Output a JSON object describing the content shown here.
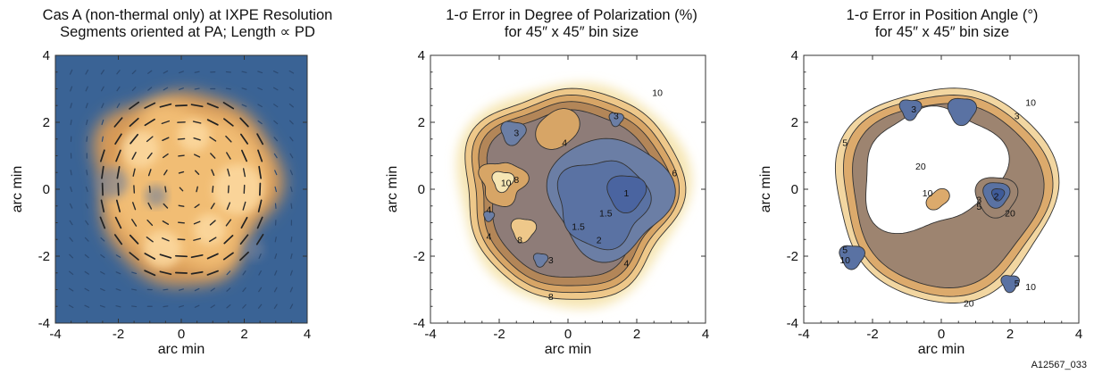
{
  "figure_id": "A12567_033",
  "chart_data": [
    {
      "type": "heatmap",
      "title_line1": "Cas A (non-thermal only) at IXPE Resolution",
      "title_line2": "Segments oriented at PA; Length ∝ PD",
      "xlabel": "arc min",
      "ylabel": "arc min",
      "xlim": [
        -4,
        4
      ],
      "ylim": [
        -4,
        4
      ],
      "xticks": [
        "-4",
        "-2",
        "0",
        "2",
        "4"
      ],
      "yticks": [
        "-4",
        "-2",
        "0",
        "2",
        "4"
      ],
      "background_color": "#3a6395",
      "source_color": "#f4c178",
      "source_center": [
        0.1,
        0.1
      ],
      "source_radius": 2.9,
      "grid_spacing": 0.5,
      "polarization_segments": "PD-scaled segments oriented at PA on a 0.5 arcmin grid"
    },
    {
      "type": "heatmap",
      "title_line1": "1-σ Error in Degree of Polarization (%)",
      "title_line2": "for 45″ x 45″ bin size",
      "xlabel": "arc min",
      "ylabel": "arc min",
      "xlim": [
        -4,
        4
      ],
      "ylim": [
        -4,
        4
      ],
      "xticks": [
        "-4",
        "-2",
        "0",
        "2",
        "4"
      ],
      "yticks": [
        "-4",
        "-2",
        "0",
        "2",
        "4"
      ],
      "contour_levels": [
        "1",
        "1.5",
        "2",
        "3",
        "4",
        "6",
        "8",
        "10"
      ],
      "contour_labels": [
        {
          "text": "10",
          "x": 2.6,
          "y": 2.9
        },
        {
          "text": "3",
          "x": 1.4,
          "y": 2.2
        },
        {
          "text": "3",
          "x": -1.5,
          "y": 1.7
        },
        {
          "text": "4",
          "x": -0.1,
          "y": 1.4
        },
        {
          "text": "6",
          "x": 3.1,
          "y": 0.5
        },
        {
          "text": "10",
          "x": -1.8,
          "y": 0.2
        },
        {
          "text": "8",
          "x": -1.5,
          "y": 0.3
        },
        {
          "text": "1",
          "x": 1.7,
          "y": -0.1
        },
        {
          "text": "1.5",
          "x": 1.1,
          "y": -0.7
        },
        {
          "text": "1.5",
          "x": 0.3,
          "y": -1.1
        },
        {
          "text": "2",
          "x": 0.9,
          "y": -1.5
        },
        {
          "text": "4",
          "x": -2.3,
          "y": -0.6
        },
        {
          "text": "4",
          "x": -2.3,
          "y": -1.4
        },
        {
          "text": "8",
          "x": -1.4,
          "y": -1.5
        },
        {
          "text": "3",
          "x": -0.5,
          "y": -2.1
        },
        {
          "text": "4",
          "x": 1.7,
          "y": -2.2
        },
        {
          "text": "8",
          "x": -0.5,
          "y": -3.2
        }
      ]
    },
    {
      "type": "heatmap",
      "title_line1": "1-σ Error in Position Angle (°)",
      "title_line2": "for 45″ x 45″ bin size",
      "xlabel": "arc min",
      "ylabel": "arc min",
      "xlim": [
        -4,
        4
      ],
      "ylim": [
        -4,
        4
      ],
      "xticks": [
        "-4",
        "-2",
        "0",
        "2",
        "4"
      ],
      "yticks": [
        "-4",
        "-2",
        "0",
        "2",
        "4"
      ],
      "contour_levels": [
        "2",
        "3",
        "5",
        "10",
        "20"
      ],
      "contour_labels": [
        {
          "text": "10",
          "x": 2.6,
          "y": 2.6
        },
        {
          "text": "3",
          "x": 2.2,
          "y": 2.2
        },
        {
          "text": "3",
          "x": -0.8,
          "y": 2.4
        },
        {
          "text": "5",
          "x": -2.8,
          "y": 1.4
        },
        {
          "text": "20",
          "x": -0.6,
          "y": 0.7
        },
        {
          "text": "10",
          "x": -0.4,
          "y": -0.1
        },
        {
          "text": "2",
          "x": 1.6,
          "y": -0.2
        },
        {
          "text": "3",
          "x": 1.1,
          "y": -0.3
        },
        {
          "text": "5",
          "x": 1.1,
          "y": -0.5
        },
        {
          "text": "20",
          "x": 2.0,
          "y": -0.7
        },
        {
          "text": "5",
          "x": -2.8,
          "y": -1.8
        },
        {
          "text": "10",
          "x": -2.8,
          "y": -2.1
        },
        {
          "text": "5",
          "x": 2.2,
          "y": -2.8
        },
        {
          "text": "10",
          "x": 2.6,
          "y": -2.9
        },
        {
          "text": "20",
          "x": 0.8,
          "y": -3.4
        }
      ]
    }
  ]
}
